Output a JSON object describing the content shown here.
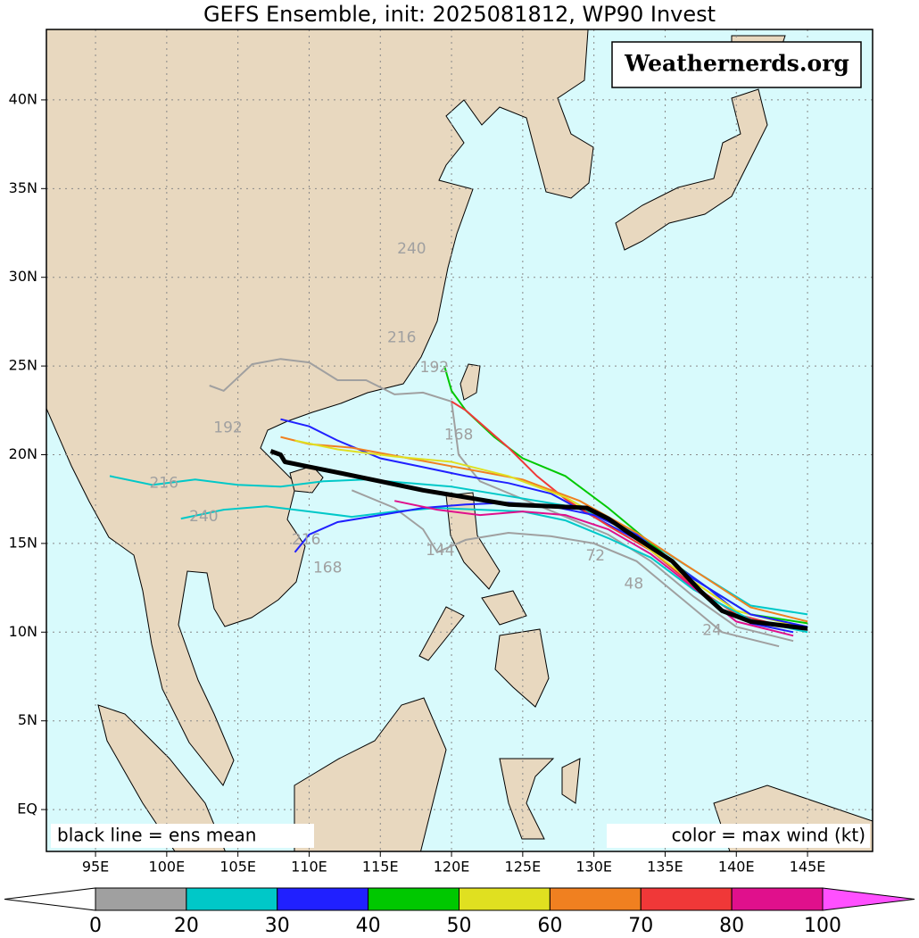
{
  "map": {
    "title": "GEFS Ensemble, init: 2025081812, WP90 Invest",
    "watermark": "Weathernerds.org",
    "notes": [
      "black line = ens mean",
      "color = max wind (kt)"
    ],
    "lon_range": [
      91.55,
      149.57
    ],
    "lat_range": [
      -2.36,
      43.97
    ],
    "lon_ticks": [
      {
        "value": 95,
        "label": "95E"
      },
      {
        "value": 100,
        "label": "100E"
      },
      {
        "value": 105,
        "label": "105E"
      },
      {
        "value": 110,
        "label": "110E"
      },
      {
        "value": 115,
        "label": "115E"
      },
      {
        "value": 120,
        "label": "120E"
      },
      {
        "value": 125,
        "label": "125E"
      },
      {
        "value": 130,
        "label": "130E"
      },
      {
        "value": 135,
        "label": "135E"
      },
      {
        "value": 140,
        "label": "140E"
      },
      {
        "value": 145,
        "label": "145E"
      }
    ],
    "lat_ticks": [
      {
        "value": 0,
        "label": "EQ"
      },
      {
        "value": 5,
        "label": "5N"
      },
      {
        "value": 10,
        "label": "10N"
      },
      {
        "value": 15,
        "label": "15N"
      },
      {
        "value": 20,
        "label": "20N"
      },
      {
        "value": 25,
        "label": "25N"
      },
      {
        "value": 30,
        "label": "30N"
      },
      {
        "value": 35,
        "label": "35N"
      },
      {
        "value": 40,
        "label": "40N"
      }
    ],
    "mean_track": {
      "lon": [
        145,
        141,
        139,
        137.5,
        135.5,
        133,
        131,
        129.5,
        127,
        124,
        121,
        118,
        115,
        112,
        109.5,
        108.3,
        108,
        107.3
      ],
      "lat": [
        10.2,
        10.6,
        11.2,
        12.3,
        14,
        15.3,
        16.4,
        17,
        17.1,
        17.2,
        17.6,
        18,
        18.5,
        19,
        19.4,
        19.6,
        20,
        20.2
      ]
    },
    "tracks": [
      {
        "color": "#a0a0a0",
        "lon": [
          144,
          140,
          137,
          134,
          131,
          128,
          125,
          122,
          120.5,
          120,
          118,
          116,
          114,
          112,
          110,
          108,
          106,
          104,
          103
        ],
        "lat": [
          9.5,
          10.3,
          12,
          14,
          15.5,
          16.5,
          17.5,
          18.5,
          20,
          23,
          23.5,
          23.4,
          24.2,
          24.2,
          25.2,
          25.4,
          25.1,
          23.6,
          23.9
        ]
      },
      {
        "color": "#00c8c8",
        "lon": [
          145,
          141,
          138,
          135,
          132,
          129,
          126,
          123,
          120,
          117,
          114,
          111,
          108,
          105,
          102,
          99,
          96
        ],
        "lat": [
          11,
          11.5,
          13,
          14.5,
          16,
          17,
          17.4,
          17.8,
          18.2,
          18.4,
          18.6,
          18.5,
          18.2,
          18.3,
          18.6,
          18.3,
          18.8
        ]
      },
      {
        "color": "#2020ff",
        "lon": [
          144,
          141,
          138,
          134,
          130,
          127,
          124,
          121,
          118,
          115,
          112,
          110,
          108
        ],
        "lat": [
          10,
          10.5,
          12.5,
          14.8,
          16.5,
          17.8,
          18.4,
          18.8,
          19.3,
          19.8,
          20.8,
          21.6,
          22
        ]
      },
      {
        "color": "#00c800",
        "lon": [
          145,
          141,
          137,
          134,
          131,
          128,
          125,
          123,
          121,
          120,
          119.5
        ],
        "lat": [
          10.5,
          11,
          13,
          15,
          17,
          18.8,
          19.8,
          21,
          22.5,
          23.6,
          25
        ]
      },
      {
        "color": "#f03838",
        "lon": [
          144,
          140,
          137,
          134,
          131,
          128,
          126,
          124,
          122,
          121,
          120
        ],
        "lat": [
          10.2,
          11,
          12.6,
          14.6,
          16,
          17.5,
          18.8,
          20.4,
          21.8,
          22.5,
          23
        ]
      },
      {
        "color": "#f08020",
        "lon": [
          145,
          141,
          137,
          133,
          129,
          125,
          121,
          117,
          113,
          110,
          108
        ],
        "lat": [
          10.6,
          11.4,
          13.5,
          15.6,
          17.4,
          18.6,
          19.2,
          19.8,
          20.4,
          20.6,
          21
        ]
      },
      {
        "color": "#e0e020",
        "lon": [
          144,
          140,
          136,
          132,
          128,
          124,
          120,
          116,
          112,
          109
        ],
        "lat": [
          10.4,
          11.2,
          13.4,
          15.8,
          17.6,
          18.8,
          19.6,
          19.9,
          20.3,
          20.8
        ]
      },
      {
        "color": "#a0a0a0",
        "lon": [
          143,
          139,
          136,
          133,
          130,
          127,
          124,
          121,
          119,
          118,
          116,
          113
        ],
        "lat": [
          9.2,
          10,
          12,
          14,
          15,
          15.4,
          15.6,
          15.2,
          14.5,
          15.8,
          17,
          18
        ]
      },
      {
        "color": "#00c8c8",
        "lon": [
          145,
          141,
          137,
          134,
          131,
          128,
          125,
          122,
          119,
          116,
          113,
          110,
          107,
          104,
          101
        ],
        "lat": [
          10,
          10.7,
          12.4,
          14.2,
          15.3,
          16.3,
          16.8,
          16.9,
          17,
          16.8,
          16.5,
          16.8,
          17.1,
          16.9,
          16.4
        ]
      },
      {
        "color": "#2020ff",
        "lon": [
          145,
          141,
          137,
          133,
          130,
          127,
          124,
          121,
          118,
          115,
          112,
          110,
          109
        ],
        "lat": [
          10.3,
          11,
          13,
          15.5,
          16.6,
          17.1,
          17.3,
          17.2,
          17,
          16.6,
          16.2,
          15.5,
          14.5
        ]
      },
      {
        "color": "#e0108c",
        "lon": [
          144,
          140,
          137,
          134,
          131,
          128,
          125,
          122,
          119,
          116
        ],
        "lat": [
          9.8,
          10.6,
          12.5,
          14.4,
          15.8,
          16.6,
          16.8,
          16.6,
          16.9,
          17.4
        ]
      }
    ],
    "hour_labels": [
      {
        "text": "240",
        "lon": 117.2,
        "lat": 31.6
      },
      {
        "text": "216",
        "lon": 116.5,
        "lat": 26.6
      },
      {
        "text": "192",
        "lon": 118.8,
        "lat": 24.9
      },
      {
        "text": "168",
        "lon": 120.5,
        "lat": 21.1
      },
      {
        "text": "192",
        "lon": 104.3,
        "lat": 21.5
      },
      {
        "text": "216",
        "lon": 99.8,
        "lat": 18.4
      },
      {
        "text": "240",
        "lon": 102.6,
        "lat": 16.5
      },
      {
        "text": "216",
        "lon": 109.8,
        "lat": 15.2
      },
      {
        "text": "168",
        "lon": 111.3,
        "lat": 13.6
      },
      {
        "text": "144",
        "lon": 119.2,
        "lat": 14.6
      },
      {
        "text": "72",
        "lon": 130.1,
        "lat": 14.3
      },
      {
        "text": "48",
        "lon": 132.8,
        "lat": 12.7
      },
      {
        "text": "24",
        "lon": 138.3,
        "lat": 10.1
      }
    ],
    "colorbar": {
      "ticks": [
        0,
        20,
        30,
        40,
        50,
        60,
        70,
        80,
        100
      ],
      "colors": [
        "#ffffff",
        "#a0a0a0",
        "#00c8c8",
        "#2020ff",
        "#00c800",
        "#e0e020",
        "#f08020",
        "#f03838",
        "#e0108c",
        "#ff50ff"
      ]
    }
  }
}
